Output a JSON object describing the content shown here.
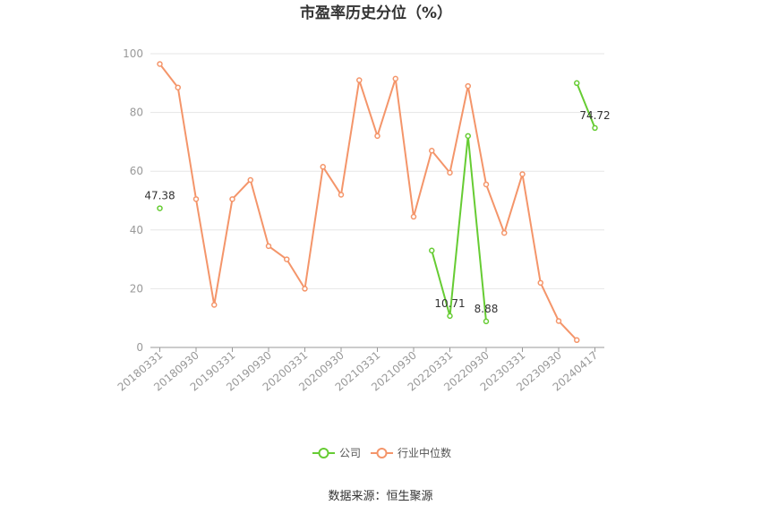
{
  "chart_data": {
    "type": "line",
    "title": "市盈率历史分位（%）",
    "source": "数据来源：恒生聚源",
    "ylim": [
      0,
      100
    ],
    "yticks": [
      0,
      20,
      40,
      60,
      80,
      100
    ],
    "grid": true,
    "legend_position": "bottom",
    "x_tick_labels": [
      "20180331",
      "20180930",
      "20190331",
      "20190930",
      "20200331",
      "20200930",
      "20210331",
      "20210930",
      "20220331",
      "20220930",
      "20230331",
      "20230930",
      "20240417"
    ],
    "x_tick_index": [
      0,
      2,
      4,
      6,
      8,
      10,
      12,
      14,
      16,
      18,
      20,
      22,
      24
    ],
    "x_count": 25,
    "series": [
      {
        "name": "公司",
        "color": "#66cc33",
        "values": [
          47.38,
          null,
          null,
          null,
          null,
          null,
          null,
          null,
          null,
          null,
          null,
          null,
          null,
          null,
          null,
          33.0,
          10.71,
          72.0,
          8.88,
          null,
          null,
          null,
          null,
          90.0,
          74.72
        ]
      },
      {
        "name": "行业中位数",
        "color": "#f4956a",
        "values": [
          96.5,
          88.5,
          50.5,
          14.5,
          50.5,
          57.0,
          34.5,
          30.0,
          20.0,
          61.5,
          52.0,
          91.0,
          72.0,
          91.5,
          44.5,
          67.0,
          59.5,
          89.0,
          55.5,
          39.0,
          59.0,
          22.0,
          9.0,
          2.5,
          null
        ]
      }
    ],
    "data_labels": [
      {
        "series": 0,
        "index": 0,
        "text": "47.38"
      },
      {
        "series": 0,
        "index": 16,
        "text": "10.71"
      },
      {
        "series": 0,
        "index": 18,
        "text": "8.88"
      },
      {
        "series": 0,
        "index": 24,
        "text": "74.72"
      }
    ]
  }
}
